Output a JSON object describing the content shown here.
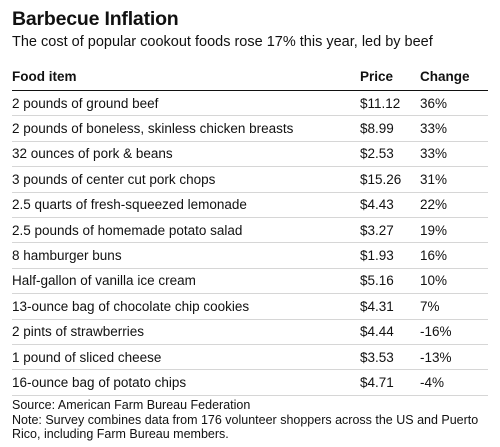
{
  "title": "Barbecue Inflation",
  "subtitle": "The cost of popular cookout foods rose 17% this year, led by beef",
  "chart_data": {
    "type": "table",
    "columns": [
      "Food item",
      "Price",
      "Change"
    ],
    "rows": [
      [
        "2 pounds of ground beef",
        "$11.12",
        "36%"
      ],
      [
        "2 pounds of boneless, skinless chicken breasts",
        "$8.99",
        "33%"
      ],
      [
        "32 ounces of pork & beans",
        "$2.53",
        "33%"
      ],
      [
        "3 pounds of center cut pork chops",
        "$15.26",
        "31%"
      ],
      [
        "2.5 quarts of fresh-squeezed lemonade",
        "$4.43",
        "22%"
      ],
      [
        "2.5 pounds of homemade potato salad",
        "$3.27",
        "19%"
      ],
      [
        "8 hamburger buns",
        "$1.93",
        "16%"
      ],
      [
        "Half-gallon of vanilla ice cream",
        "$5.16",
        "10%"
      ],
      [
        "13-ounce bag of chocolate chip cookies",
        "$4.31",
        "7%"
      ],
      [
        "2 pints of strawberries",
        "$4.44",
        "-16%"
      ],
      [
        "1 pound of sliced cheese",
        "$3.53",
        "-13%"
      ],
      [
        "16-ounce bag of potato chips",
        "$4.71",
        "-4%"
      ]
    ]
  },
  "source": "Source: American Farm Bureau Federation",
  "note": "Note: Survey combines data from 176 volunteer shoppers across the US and Puerto Rico, including Farm Bureau members."
}
